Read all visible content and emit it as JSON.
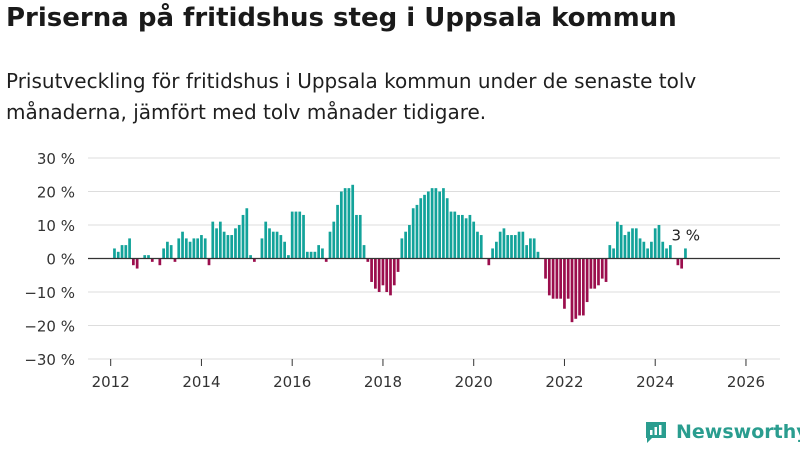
{
  "title": "Priserna på fritidshus steg i Uppsala kommun",
  "subtitle": "Prisutveckling för fritidshus i Uppsala kommun under de senaste tolv månaderna, jämfört med tolv månader tidigare.",
  "brand": {
    "name": "Newsworthy"
  },
  "colors": {
    "positive": "#13a39a",
    "negative": "#9b0e4d",
    "grid": "#dddddd",
    "axis": "#333333",
    "brand": "#2a9d8f"
  },
  "chart_data": {
    "type": "bar",
    "title": "Priserna på fritidshus steg i Uppsala kommun",
    "xlabel": "",
    "ylabel": "",
    "ylim": [
      -30,
      30
    ],
    "yticks": [
      {
        "value": -30,
        "label": "−30 %"
      },
      {
        "value": -20,
        "label": "−20 %"
      },
      {
        "value": -10,
        "label": "−10 %"
      },
      {
        "value": 0,
        "label": "0 %"
      },
      {
        "value": 10,
        "label": "10 %"
      },
      {
        "value": 20,
        "label": "20 %"
      },
      {
        "value": 30,
        "label": "30 %"
      }
    ],
    "xlim": [
      2011.5,
      2026.75
    ],
    "xticks": [
      {
        "value": 2012,
        "label": "2012"
      },
      {
        "value": 2014,
        "label": "2014"
      },
      {
        "value": 2016,
        "label": "2016"
      },
      {
        "value": 2018,
        "label": "2018"
      },
      {
        "value": 2020,
        "label": "2020"
      },
      {
        "value": 2022,
        "label": "2022"
      },
      {
        "value": 2024,
        "label": "2024"
      },
      {
        "value": 2026,
        "label": "2026"
      }
    ],
    "start": 2012.0,
    "step_years": 0.08333,
    "annotation": {
      "label": "3 %",
      "value": 3
    },
    "values": [
      0,
      3,
      2,
      4,
      4,
      6,
      -2,
      -3,
      0,
      1,
      1,
      -1,
      0,
      -2,
      3,
      5,
      4,
      -1,
      6,
      8,
      6,
      5,
      6,
      6,
      7,
      6,
      -2,
      11,
      9,
      11,
      8,
      7,
      7,
      9,
      10,
      13,
      15,
      1,
      -1,
      0,
      6,
      11,
      9,
      8,
      8,
      7,
      5,
      1,
      14,
      14,
      14,
      13,
      2,
      2,
      2,
      4,
      3,
      -1,
      8,
      11,
      16,
      20,
      21,
      21,
      22,
      13,
      13,
      4,
      -1,
      -7,
      -9,
      -10,
      -8,
      -10,
      -11,
      -8,
      -4,
      6,
      8,
      10,
      15,
      16,
      18,
      19,
      20,
      21,
      21,
      20,
      21,
      18,
      14,
      14,
      13,
      13,
      12,
      13,
      11,
      8,
      7,
      0,
      -2,
      3,
      5,
      8,
      9,
      7,
      7,
      7,
      8,
      8,
      4,
      6,
      6,
      2,
      0,
      -6,
      -11,
      -12,
      -12,
      -12,
      -15,
      -12,
      -19,
      -18,
      -17,
      -17,
      -13,
      -9,
      -9,
      -8,
      -6,
      -7,
      4,
      3,
      11,
      10,
      7,
      8,
      9,
      9,
      6,
      5,
      3,
      5,
      9,
      10,
      5,
      3,
      4,
      0,
      -2,
      -3,
      3
    ]
  }
}
